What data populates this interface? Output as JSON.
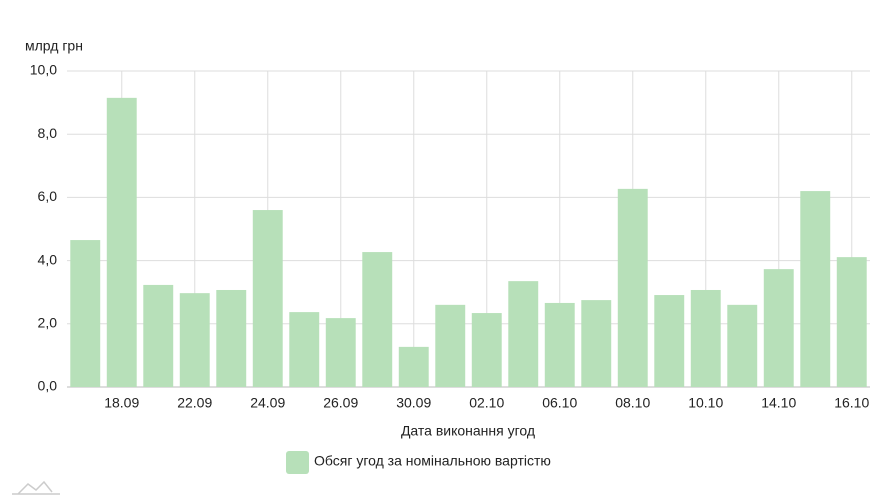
{
  "chart_data": {
    "type": "bar",
    "y_label": "млрд грн",
    "x_label": "Дата виконання угод",
    "categories": [
      null,
      "18.09",
      null,
      "22.09",
      null,
      "24.09",
      null,
      "26.09",
      null,
      "30.09",
      null,
      "02.10",
      null,
      "06.10",
      null,
      "08.10",
      null,
      "10.10",
      null,
      "14.10",
      null,
      "16.10"
    ],
    "series": [
      {
        "name": "Обсяг угод за номінальною вартістю",
        "color": "#b7e0b9",
        "values": [
          4.65,
          9.15,
          3.23,
          2.97,
          3.07,
          5.6,
          2.37,
          2.18,
          4.27,
          1.27,
          2.6,
          2.34,
          3.35,
          2.66,
          2.75,
          6.27,
          2.91,
          3.07,
          2.6,
          3.73,
          6.2,
          4.11
        ]
      }
    ],
    "ylim": [
      0,
      10
    ],
    "yticks": [
      {
        "value": 0,
        "label": "0,0"
      },
      {
        "value": 2,
        "label": "2,0"
      },
      {
        "value": 4,
        "label": "4,0"
      },
      {
        "value": 6,
        "label": "6,0"
      },
      {
        "value": 8,
        "label": "8,0"
      },
      {
        "value": 10,
        "label": "10,0"
      }
    ],
    "grid": true
  }
}
